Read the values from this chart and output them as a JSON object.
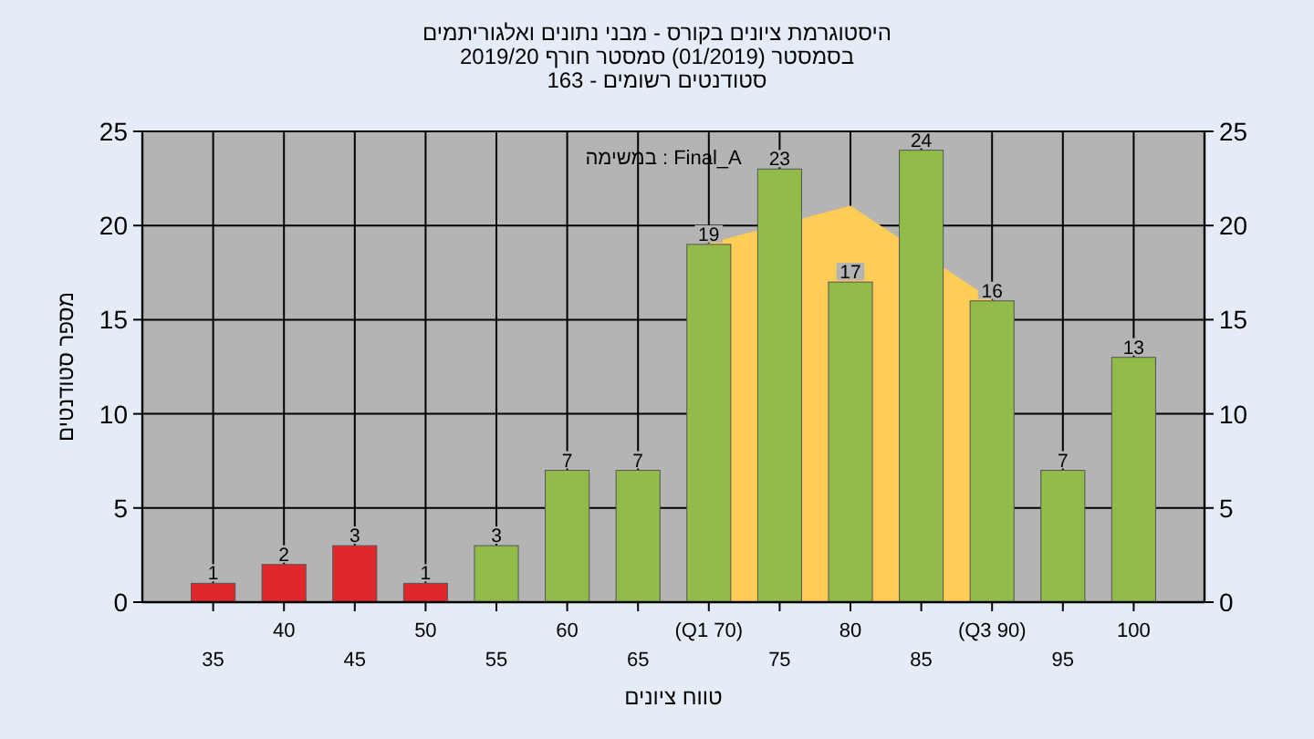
{
  "chart_data": {
    "type": "bar",
    "title": "היסטוגרמת ציונים בקורס - מבני נתונים ואלגוריתמים",
    "subtitle": "בסמסטר (01/2019) סמסטר חורף 2019/20",
    "annotations": [
      "סטודנטים רשומים - 163",
      "במשימה : Final_A"
    ],
    "xlabel": "טווח ציונים",
    "ylabel": "מספר סטודנטים",
    "categories": [
      "35",
      "40",
      "45",
      "50",
      "55",
      "60",
      "65",
      "(Q1 70)",
      "75",
      "80",
      "85",
      "(Q3 90)",
      "95",
      "100"
    ],
    "series": [
      {
        "type": "area",
        "color": "#ffcc55",
        "values": [
          null,
          null,
          null,
          null,
          null,
          null,
          null,
          19,
          null,
          21,
          null,
          16,
          null,
          null
        ]
      },
      {
        "values": [
          1,
          2,
          3,
          1,
          3,
          7,
          7,
          19,
          23,
          17,
          24,
          16,
          7,
          13
        ],
        "value_labels": [
          "1",
          "2",
          "3",
          "1",
          "3",
          "7",
          "7",
          "19",
          "23",
          "17",
          "24",
          "16",
          "7",
          "13"
        ],
        "colors": [
          "#e0282c",
          "#e0282c",
          "#e0282c",
          "#e0282c",
          "#92bb4a",
          "#92bb4a",
          "#92bb4a",
          "#92bb4a",
          "#92bb4a",
          "#92bb4a",
          "#92bb4a",
          "#92bb4a",
          "#92bb4a",
          "#92bb4a"
        ]
      }
    ],
    "ylim": [
      0,
      25
    ],
    "yticks": [
      0,
      5,
      10,
      15,
      20,
      25
    ],
    "y2lim": [
      0,
      25
    ],
    "y2ticks": [
      0,
      5,
      10,
      15,
      20,
      25
    ],
    "grid": true
  }
}
